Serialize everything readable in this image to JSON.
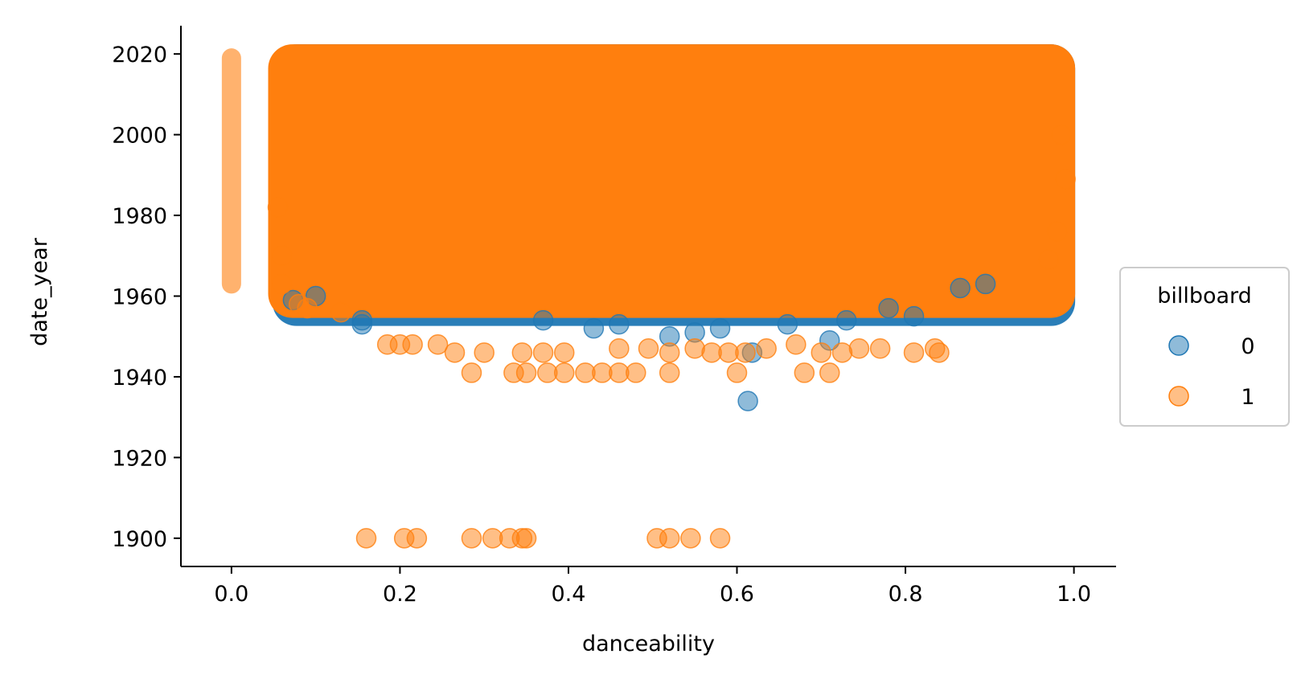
{
  "chart_data": {
    "type": "scatter",
    "title": "",
    "xlabel": "danceability",
    "ylabel": "date_year",
    "xlim": [
      -0.06,
      1.05
    ],
    "ylim": [
      1893,
      2027
    ],
    "xticks": [
      0.0,
      0.2,
      0.4,
      0.6,
      0.8,
      1.0
    ],
    "xtick_labels": [
      "0.0",
      "0.2",
      "0.4",
      "0.6",
      "0.8",
      "1.0"
    ],
    "yticks": [
      1900,
      1920,
      1940,
      1960,
      1980,
      2000,
      2020
    ],
    "ytick_labels": [
      "1900",
      "1920",
      "1940",
      "1960",
      "1980",
      "2000",
      "2020"
    ],
    "grid": false,
    "legend": {
      "title": "billboard",
      "placement": "center-right-outside"
    },
    "series": [
      {
        "name": "0",
        "color": "#1f77b4",
        "alpha": 0.5,
        "dense_region": {
          "x_range": [
            0.06,
            0.99
          ],
          "y_range": [
            1955,
            2020
          ]
        },
        "points": [
          [
            0.073,
            1959
          ],
          [
            0.155,
            1953
          ],
          [
            0.155,
            1954
          ],
          [
            0.1,
            1960
          ],
          [
            0.37,
            1954
          ],
          [
            0.43,
            1952
          ],
          [
            0.46,
            1953
          ],
          [
            0.52,
            1950
          ],
          [
            0.55,
            1951
          ],
          [
            0.58,
            1952
          ],
          [
            0.613,
            1934
          ],
          [
            0.618,
            1946
          ],
          [
            0.66,
            1953
          ],
          [
            0.71,
            1949
          ],
          [
            0.73,
            1954
          ],
          [
            0.78,
            1957
          ],
          [
            0.81,
            1955
          ],
          [
            0.865,
            1962
          ],
          [
            0.895,
            1963
          ]
        ]
      },
      {
        "name": "1",
        "color": "#ff7f0e",
        "alpha": 0.5,
        "dense_region": {
          "x_range": [
            0.055,
            0.99
          ],
          "y_range": [
            1957,
            2020
          ]
        },
        "zero_column": {
          "x": 0.0,
          "y_range": [
            1963,
            2019
          ]
        },
        "points": [
          [
            0.16,
            1900
          ],
          [
            0.205,
            1900
          ],
          [
            0.22,
            1900
          ],
          [
            0.285,
            1900
          ],
          [
            0.31,
            1900
          ],
          [
            0.33,
            1900
          ],
          [
            0.345,
            1900
          ],
          [
            0.35,
            1900
          ],
          [
            0.505,
            1900
          ],
          [
            0.52,
            1900
          ],
          [
            0.545,
            1900
          ],
          [
            0.58,
            1900
          ],
          [
            0.185,
            1948
          ],
          [
            0.2,
            1948
          ],
          [
            0.215,
            1948
          ],
          [
            0.245,
            1948
          ],
          [
            0.265,
            1946
          ],
          [
            0.3,
            1946
          ],
          [
            0.335,
            1941
          ],
          [
            0.35,
            1941
          ],
          [
            0.285,
            1941
          ],
          [
            0.375,
            1941
          ],
          [
            0.395,
            1941
          ],
          [
            0.42,
            1941
          ],
          [
            0.44,
            1941
          ],
          [
            0.46,
            1941
          ],
          [
            0.48,
            1941
          ],
          [
            0.52,
            1941
          ],
          [
            0.6,
            1941
          ],
          [
            0.68,
            1941
          ],
          [
            0.71,
            1941
          ],
          [
            0.345,
            1946
          ],
          [
            0.37,
            1946
          ],
          [
            0.395,
            1946
          ],
          [
            0.46,
            1947
          ],
          [
            0.495,
            1947
          ],
          [
            0.52,
            1946
          ],
          [
            0.55,
            1947
          ],
          [
            0.57,
            1946
          ],
          [
            0.59,
            1946
          ],
          [
            0.61,
            1946
          ],
          [
            0.635,
            1947
          ],
          [
            0.67,
            1948
          ],
          [
            0.7,
            1946
          ],
          [
            0.725,
            1946
          ],
          [
            0.745,
            1947
          ],
          [
            0.77,
            1947
          ],
          [
            0.81,
            1946
          ],
          [
            0.835,
            1947
          ],
          [
            0.84,
            1946
          ],
          [
            0.98,
            1976
          ],
          [
            0.97,
            1969
          ],
          [
            0.99,
            1989
          ],
          [
            0.985,
            2000
          ],
          [
            0.055,
            1982
          ],
          [
            0.06,
            1970
          ],
          [
            0.06,
            1963
          ],
          [
            0.08,
            1958
          ],
          [
            0.09,
            1957
          ],
          [
            0.13,
            1956
          ]
        ]
      }
    ]
  }
}
